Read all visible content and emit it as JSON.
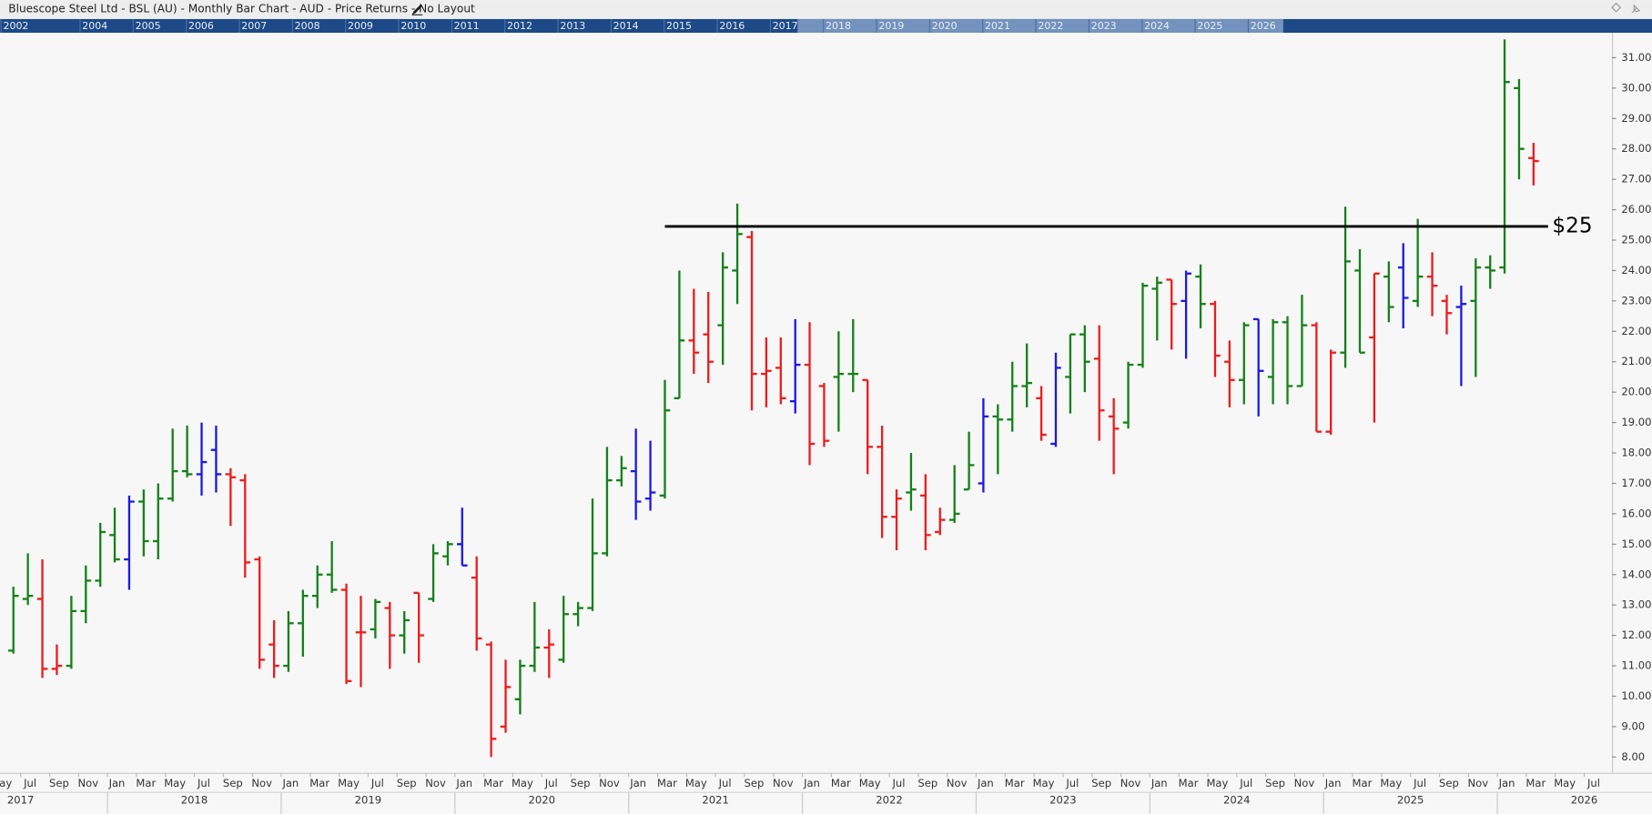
{
  "chart_data": {
    "type": "ohlc",
    "title": "Bluescope Steel Ltd - BSL (AU) - Monthly Bar Chart - AUD - Price Returns - No Layout",
    "x": [
      "2017-06",
      "2017-07",
      "2017-08",
      "2017-09",
      "2017-10",
      "2017-11",
      "2017-12",
      "2018-01",
      "2018-02",
      "2018-03",
      "2018-04",
      "2018-05",
      "2018-06",
      "2018-07",
      "2018-08",
      "2018-09",
      "2018-10",
      "2018-11",
      "2018-12",
      "2019-01",
      "2019-02",
      "2019-03",
      "2019-04",
      "2019-05",
      "2019-06",
      "2019-07",
      "2019-08",
      "2019-09",
      "2019-10",
      "2019-11",
      "2019-12",
      "2020-01",
      "2020-02",
      "2020-03",
      "2020-04",
      "2020-05",
      "2020-06",
      "2020-07",
      "2020-08",
      "2020-09",
      "2020-10",
      "2020-11",
      "2020-12",
      "2021-01",
      "2021-02",
      "2021-03",
      "2021-04",
      "2021-05",
      "2021-06",
      "2021-07",
      "2021-08",
      "2021-09",
      "2021-10",
      "2021-11",
      "2021-12",
      "2022-01",
      "2022-02",
      "2022-03",
      "2022-04",
      "2022-05",
      "2022-06",
      "2022-07",
      "2022-08",
      "2022-09",
      "2022-10",
      "2022-11",
      "2022-12",
      "2023-01",
      "2023-02",
      "2023-03",
      "2023-04",
      "2023-05",
      "2023-06",
      "2023-07",
      "2023-08",
      "2023-09",
      "2023-10",
      "2023-11",
      "2023-12",
      "2024-01",
      "2024-02",
      "2024-03",
      "2024-04",
      "2024-05",
      "2024-06",
      "2024-07",
      "2024-08",
      "2024-09",
      "2024-10",
      "2024-11",
      "2024-12",
      "2025-01",
      "2025-02",
      "2025-03",
      "2025-04",
      "2025-05",
      "2025-06",
      "2025-07",
      "2025-08",
      "2025-09",
      "2025-10",
      "2025-11",
      "2025-12",
      "2026-01",
      "2026-02",
      "2026-03"
    ],
    "open": [
      11.5,
      13.2,
      13.2,
      10.9,
      11.0,
      12.8,
      13.8,
      15.3,
      14.5,
      16.4,
      15.1,
      16.5,
      17.4,
      17.3,
      18.1,
      17.3,
      17.1,
      14.5,
      11.7,
      11.0,
      12.4,
      13.3,
      14.0,
      13.5,
      12.1,
      12.2,
      12.9,
      12.0,
      13.4,
      13.2,
      14.6,
      15.0,
      13.9,
      11.7,
      9.0,
      9.9,
      11.0,
      11.6,
      11.2,
      12.7,
      12.9,
      14.7,
      17.1,
      17.4,
      16.5,
      16.6,
      19.8,
      21.7,
      21.9,
      22.2,
      24.0,
      25.1,
      20.6,
      20.8,
      19.7,
      20.9,
      20.2,
      20.5,
      20.6,
      20.4,
      18.2,
      15.9,
      16.7,
      16.6,
      15.4,
      15.8,
      16.8,
      17.0,
      19.2,
      19.1,
      20.2,
      19.8,
      18.3,
      20.5,
      21.9,
      21.1,
      19.2,
      19.0,
      20.9,
      23.4,
      23.7,
      23.0,
      23.8,
      22.9,
      21.0,
      20.4,
      22.4,
      20.5,
      22.3,
      20.2,
      22.2,
      18.7,
      21.3,
      24.0,
      21.8,
      23.8,
      24.1,
      23.0,
      23.8,
      23.0,
      22.8,
      23.0,
      24.1,
      24.1,
      30.0,
      27.7
    ],
    "high": [
      13.6,
      14.7,
      14.5,
      11.7,
      13.3,
      14.3,
      15.7,
      16.2,
      16.6,
      16.8,
      17.0,
      18.8,
      18.9,
      19.0,
      18.9,
      17.5,
      17.3,
      14.6,
      12.5,
      12.8,
      13.5,
      14.3,
      15.1,
      13.7,
      13.3,
      13.2,
      13.1,
      12.8,
      13.4,
      15.0,
      15.1,
      16.2,
      14.6,
      11.8,
      11.2,
      11.2,
      13.1,
      12.2,
      13.3,
      13.1,
      16.5,
      18.2,
      17.9,
      18.8,
      18.4,
      20.4,
      24.0,
      23.4,
      23.3,
      24.6,
      26.2,
      25.3,
      21.8,
      21.8,
      22.4,
      22.3,
      20.3,
      22.0,
      22.4,
      20.4,
      18.9,
      16.8,
      18.0,
      17.3,
      16.2,
      17.6,
      18.7,
      19.8,
      19.6,
      21.0,
      21.6,
      20.2,
      21.3,
      21.9,
      22.2,
      22.2,
      19.8,
      21.0,
      23.6,
      23.8,
      23.7,
      24.0,
      24.2,
      23.0,
      21.7,
      22.3,
      22.4,
      22.4,
      22.5,
      23.2,
      22.3,
      21.4,
      26.1,
      24.7,
      23.9,
      24.3,
      24.9,
      25.7,
      24.6,
      23.2,
      23.5,
      24.4,
      24.5,
      31.6,
      30.3,
      28.2
    ],
    "low": [
      11.4,
      13.0,
      10.6,
      10.7,
      10.9,
      12.4,
      13.6,
      14.4,
      13.5,
      14.6,
      14.5,
      16.4,
      17.2,
      16.6,
      16.7,
      15.6,
      13.9,
      10.9,
      10.6,
      10.8,
      11.3,
      12.9,
      13.4,
      10.4,
      10.3,
      11.9,
      10.9,
      11.4,
      11.1,
      13.1,
      14.3,
      14.3,
      11.5,
      8.0,
      8.8,
      9.4,
      10.8,
      10.6,
      11.1,
      12.3,
      12.8,
      14.6,
      16.9,
      15.8,
      16.1,
      16.5,
      19.8,
      20.6,
      20.3,
      20.9,
      22.9,
      19.4,
      19.5,
      19.6,
      19.3,
      17.6,
      18.2,
      18.7,
      20.0,
      17.3,
      15.2,
      14.8,
      16.1,
      14.8,
      15.3,
      15.7,
      16.8,
      16.7,
      17.3,
      18.7,
      19.5,
      18.4,
      18.2,
      19.3,
      20.0,
      18.4,
      17.3,
      18.8,
      20.8,
      21.7,
      21.4,
      21.1,
      22.1,
      20.5,
      19.5,
      19.6,
      19.2,
      19.6,
      19.6,
      20.2,
      18.7,
      18.6,
      20.8,
      21.3,
      19.0,
      22.3,
      22.1,
      22.8,
      22.5,
      21.9,
      20.2,
      20.5,
      23.4,
      23.9,
      27.0,
      26.8
    ],
    "close": [
      13.3,
      13.3,
      10.9,
      11.0,
      12.8,
      13.8,
      15.4,
      14.5,
      16.4,
      15.1,
      16.5,
      17.4,
      17.3,
      17.7,
      17.3,
      17.2,
      14.4,
      11.2,
      11.0,
      12.4,
      13.3,
      14.0,
      13.5,
      10.5,
      12.1,
      13.1,
      12.0,
      12.5,
      12.0,
      14.7,
      15.0,
      14.3,
      11.9,
      8.6,
      10.3,
      11.0,
      11.6,
      11.7,
      12.7,
      12.9,
      14.7,
      17.1,
      17.5,
      16.4,
      16.7,
      19.4,
      21.7,
      21.3,
      21.0,
      24.1,
      25.2,
      20.6,
      20.7,
      19.8,
      20.9,
      18.3,
      18.4,
      20.6,
      20.6,
      18.2,
      15.9,
      16.5,
      16.8,
      15.3,
      15.8,
      16.0,
      17.6,
      19.2,
      19.1,
      20.2,
      20.3,
      18.6,
      20.8,
      21.9,
      21.0,
      19.4,
      18.8,
      20.9,
      23.5,
      23.6,
      22.9,
      23.9,
      22.9,
      21.2,
      20.4,
      22.2,
      20.7,
      22.3,
      20.2,
      22.2,
      18.7,
      21.3,
      24.3,
      21.3,
      23.9,
      22.8,
      23.1,
      23.8,
      23.5,
      22.6,
      22.9,
      24.1,
      24.0,
      30.2,
      28.0,
      27.6
    ],
    "colors": [
      "#16801a",
      "#16801a",
      "#ee1c1c",
      "#ee1c1c",
      "#16801a",
      "#16801a",
      "#16801a",
      "#16801a",
      "#1a1ae6",
      "#16801a",
      "#16801a",
      "#16801a",
      "#16801a",
      "#1a1ae6",
      "#1a1ae6",
      "#ee1c1c",
      "#ee1c1c",
      "#ee1c1c",
      "#ee1c1c",
      "#16801a",
      "#16801a",
      "#16801a",
      "#16801a",
      "#ee1c1c",
      "#ee1c1c",
      "#16801a",
      "#ee1c1c",
      "#16801a",
      "#ee1c1c",
      "#16801a",
      "#16801a",
      "#1a1ae6",
      "#ee1c1c",
      "#ee1c1c",
      "#ee1c1c",
      "#16801a",
      "#16801a",
      "#ee1c1c",
      "#16801a",
      "#16801a",
      "#16801a",
      "#16801a",
      "#16801a",
      "#1a1ae6",
      "#1a1ae6",
      "#16801a",
      "#16801a",
      "#ee1c1c",
      "#ee1c1c",
      "#16801a",
      "#16801a",
      "#ee1c1c",
      "#ee1c1c",
      "#ee1c1c",
      "#1a1ae6",
      "#ee1c1c",
      "#ee1c1c",
      "#16801a",
      "#16801a",
      "#ee1c1c",
      "#ee1c1c",
      "#ee1c1c",
      "#16801a",
      "#ee1c1c",
      "#ee1c1c",
      "#16801a",
      "#16801a",
      "#1a1ae6",
      "#16801a",
      "#16801a",
      "#16801a",
      "#ee1c1c",
      "#1a1ae6",
      "#16801a",
      "#16801a",
      "#ee1c1c",
      "#ee1c1c",
      "#16801a",
      "#16801a",
      "#16801a",
      "#ee1c1c",
      "#1a1ae6",
      "#16801a",
      "#ee1c1c",
      "#ee1c1c",
      "#16801a",
      "#1a1ae6",
      "#16801a",
      "#16801a",
      "#16801a",
      "#ee1c1c",
      "#ee1c1c",
      "#16801a",
      "#16801a",
      "#ee1c1c",
      "#16801a",
      "#1a1ae6",
      "#16801a",
      "#ee1c1c",
      "#ee1c1c",
      "#1a1ae6",
      "#16801a",
      "#16801a",
      "#16801a",
      "#16801a",
      "#ee1c1c"
    ],
    "ylim": [
      7.48,
      31.82
    ],
    "yticks": [
      {
        "value": 8,
        "label": "8.00"
      },
      {
        "value": 9,
        "label": "9.00"
      },
      {
        "value": 10,
        "label": "10.00"
      },
      {
        "value": 11,
        "label": "11.00"
      },
      {
        "value": 12,
        "label": "12.00"
      },
      {
        "value": 13,
        "label": "13.00"
      },
      {
        "value": 14,
        "label": "14.00"
      },
      {
        "value": 15,
        "label": "15.00"
      },
      {
        "value": 16,
        "label": "16.00"
      },
      {
        "value": 17,
        "label": "17.00"
      },
      {
        "value": 18,
        "label": "18.00"
      },
      {
        "value": 19,
        "label": "19.00"
      },
      {
        "value": 20,
        "label": "20.00"
      },
      {
        "value": 21,
        "label": "21.00"
      },
      {
        "value": 22,
        "label": "22.00"
      },
      {
        "value": 23,
        "label": "23.00"
      },
      {
        "value": 24,
        "label": "24.00"
      },
      {
        "value": 25,
        "label": "25.00"
      },
      {
        "value": 26,
        "label": "26.00"
      },
      {
        "value": 27,
        "label": "27.00"
      },
      {
        "value": 28,
        "label": "28.00"
      },
      {
        "value": 29,
        "label": "29.00"
      },
      {
        "value": 30,
        "label": "30.00"
      },
      {
        "value": 31,
        "label": "31.00"
      }
    ],
    "month_ticks": [
      {
        "value": "2017-05",
        "label": "May"
      },
      {
        "value": "2017-07",
        "label": "Jul"
      },
      {
        "value": "2017-09",
        "label": "Sep"
      },
      {
        "value": "2017-11",
        "label": "Nov"
      },
      {
        "value": "2018-01",
        "label": "Jan"
      },
      {
        "value": "2018-03",
        "label": "Mar"
      },
      {
        "value": "2018-05",
        "label": "May"
      },
      {
        "value": "2018-07",
        "label": "Jul"
      },
      {
        "value": "2018-09",
        "label": "Sep"
      },
      {
        "value": "2018-11",
        "label": "Nov"
      },
      {
        "value": "2019-01",
        "label": "Jan"
      },
      {
        "value": "2019-03",
        "label": "Mar"
      },
      {
        "value": "2019-05",
        "label": "May"
      },
      {
        "value": "2019-07",
        "label": "Jul"
      },
      {
        "value": "2019-09",
        "label": "Sep"
      },
      {
        "value": "2019-11",
        "label": "Nov"
      },
      {
        "value": "2020-01",
        "label": "Jan"
      },
      {
        "value": "2020-03",
        "label": "Mar"
      },
      {
        "value": "2020-05",
        "label": "May"
      },
      {
        "value": "2020-07",
        "label": "Jul"
      },
      {
        "value": "2020-09",
        "label": "Sep"
      },
      {
        "value": "2020-11",
        "label": "Nov"
      },
      {
        "value": "2021-01",
        "label": "Jan"
      },
      {
        "value": "2021-03",
        "label": "Mar"
      },
      {
        "value": "2021-05",
        "label": "May"
      },
      {
        "value": "2021-07",
        "label": "Jul"
      },
      {
        "value": "2021-09",
        "label": "Sep"
      },
      {
        "value": "2021-11",
        "label": "Nov"
      },
      {
        "value": "2022-01",
        "label": "Jan"
      },
      {
        "value": "2022-03",
        "label": "Mar"
      },
      {
        "value": "2022-05",
        "label": "May"
      },
      {
        "value": "2022-07",
        "label": "Jul"
      },
      {
        "value": "2022-09",
        "label": "Sep"
      },
      {
        "value": "2022-11",
        "label": "Nov"
      },
      {
        "value": "2023-01",
        "label": "Jan"
      },
      {
        "value": "2023-03",
        "label": "Mar"
      },
      {
        "value": "2023-05",
        "label": "May"
      },
      {
        "value": "2023-07",
        "label": "Jul"
      },
      {
        "value": "2023-09",
        "label": "Sep"
      },
      {
        "value": "2023-11",
        "label": "Nov"
      },
      {
        "value": "2024-01",
        "label": "Jan"
      },
      {
        "value": "2024-03",
        "label": "Mar"
      },
      {
        "value": "2024-05",
        "label": "May"
      },
      {
        "value": "2024-07",
        "label": "Jul"
      },
      {
        "value": "2024-09",
        "label": "Sep"
      },
      {
        "value": "2024-11",
        "label": "Nov"
      },
      {
        "value": "2025-01",
        "label": "Jan"
      },
      {
        "value": "2025-03",
        "label": "Mar"
      },
      {
        "value": "2025-05",
        "label": "May"
      },
      {
        "value": "2025-07",
        "label": "Jul"
      },
      {
        "value": "2025-09",
        "label": "Sep"
      },
      {
        "value": "2025-11",
        "label": "Nov"
      },
      {
        "value": "2026-01",
        "label": "Jan"
      },
      {
        "value": "2026-03",
        "label": "Mar"
      },
      {
        "value": "2026-05",
        "label": "May"
      },
      {
        "value": "2026-07",
        "label": "Jul"
      }
    ],
    "year_ticks": [
      2017,
      2018,
      2019,
      2020,
      2021,
      2022,
      2023,
      2024,
      2025,
      2026
    ],
    "navigator_years": [
      2002,
      2004,
      2005,
      2006,
      2007,
      2008,
      2009,
      2010,
      2011,
      2012,
      2013,
      2014,
      2015,
      2016,
      2017,
      2018,
      2019,
      2020,
      2021,
      2022,
      2023,
      2024,
      2025,
      2026
    ],
    "annotations": [
      {
        "label": "$25",
        "value": 25.45,
        "x_start": "2021-03",
        "x_end": "2026-04",
        "color": "#000000"
      }
    ]
  }
}
